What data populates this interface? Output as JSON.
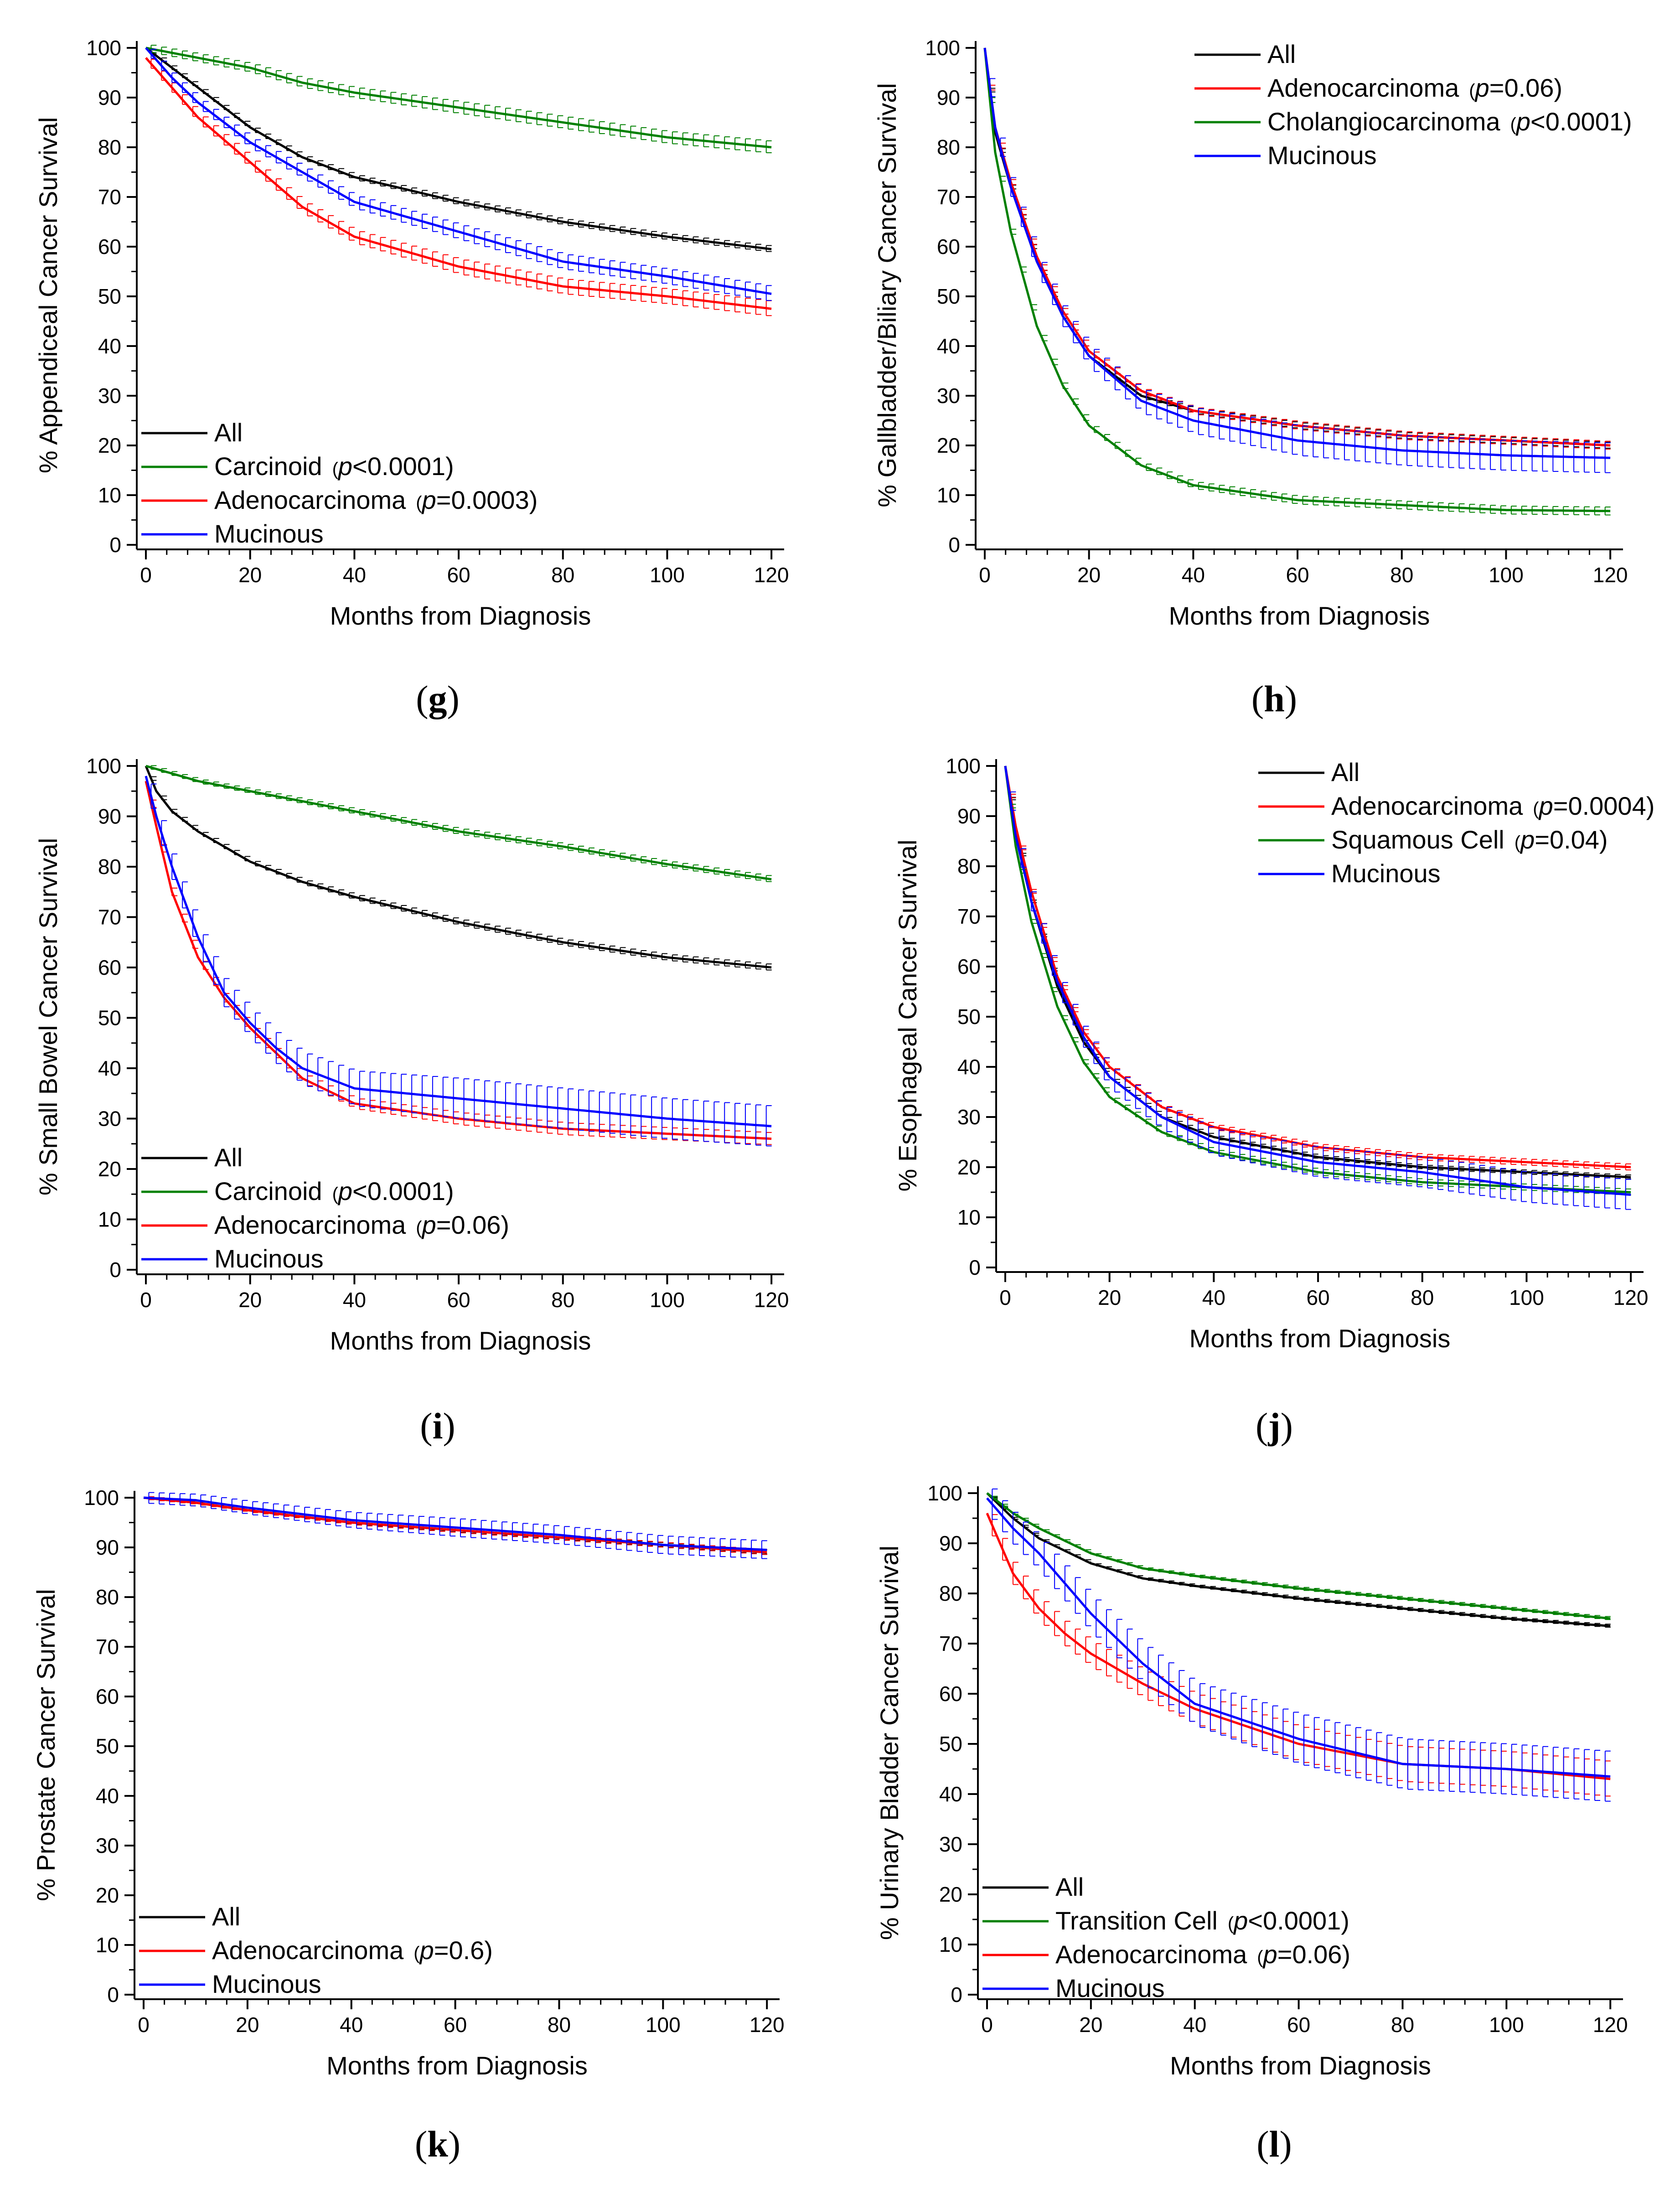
{
  "figure": {
    "x_axis_label": "Months from Diagnosis",
    "x_ticks": [
      "0",
      "20",
      "40",
      "60",
      "80",
      "100",
      "120"
    ],
    "y_ticks": [
      "0",
      "10",
      "20",
      "30",
      "40",
      "50",
      "60",
      "70",
      "80",
      "90",
      "100"
    ]
  },
  "colors": {
    "all": "#000000",
    "green": "#008000",
    "red": "#ff0000",
    "blue": "#0000ff"
  },
  "chart_data": [
    {
      "id": "g",
      "type": "line",
      "panel": "g",
      "ylabel": "% Appendiceal Cancer Survival",
      "xlabel": "Months from Diagnosis",
      "xlim": [
        0,
        122
      ],
      "ylim": [
        0,
        100
      ],
      "legend_position": "bottom-left",
      "series": [
        {
          "name": "All",
          "pnote": "",
          "color": "#000000",
          "x": [
            0,
            5,
            10,
            20,
            30,
            40,
            60,
            80,
            100,
            120
          ],
          "values": [
            100,
            96,
            92,
            84,
            78,
            74,
            69,
            65,
            62,
            59.5
          ],
          "err": 0.6
        },
        {
          "name": "Carcinoid",
          "pnote": "p<0.0001",
          "color": "#008000",
          "x": [
            0,
            5,
            10,
            20,
            30,
            40,
            60,
            80,
            100,
            120
          ],
          "values": [
            100,
            99,
            98,
            96,
            93,
            91,
            88,
            85,
            82,
            80
          ],
          "err": 1.2
        },
        {
          "name": "Adenocarcinoma",
          "pnote": "p=0.0003",
          "color": "#ff0000",
          "x": [
            0,
            5,
            10,
            20,
            30,
            40,
            60,
            80,
            100,
            120
          ],
          "values": [
            98,
            92,
            86,
            77,
            68,
            62,
            56,
            52,
            50,
            47.5
          ],
          "err": 1.5
        },
        {
          "name": "Mucinous",
          "pnote": "",
          "color": "#0000ff",
          "x": [
            0,
            5,
            10,
            20,
            30,
            40,
            60,
            80,
            100,
            120
          ],
          "values": [
            100,
            94,
            89,
            81,
            75,
            69,
            63,
            57,
            54,
            50.5
          ],
          "err": 1.5
        }
      ]
    },
    {
      "id": "h",
      "type": "line",
      "panel": "h",
      "ylabel": "% Gallbladder/Biliary Cancer Survival",
      "xlabel": "Months from Diagnosis",
      "xlim": [
        0,
        122
      ],
      "ylim": [
        0,
        100
      ],
      "legend_position": "top-right",
      "series": [
        {
          "name": "All",
          "pnote": "",
          "color": "#000000",
          "x": [
            0,
            2,
            5,
            10,
            15,
            20,
            30,
            40,
            60,
            80,
            100,
            120
          ],
          "values": [
            100,
            83,
            72,
            57,
            46,
            38,
            30,
            27,
            24,
            22,
            21,
            20
          ],
          "err": 0.6
        },
        {
          "name": "Adenocarcinoma",
          "pnote": "p=0.06",
          "color": "#ff0000",
          "x": [
            0,
            2,
            5,
            10,
            15,
            20,
            30,
            40,
            60,
            80,
            100,
            120
          ],
          "values": [
            100,
            84,
            73,
            58,
            47,
            39,
            31,
            27,
            24,
            22,
            21,
            20
          ],
          "err": 0.8
        },
        {
          "name": "Cholangiocarcinoma",
          "pnote": "p<0.0001",
          "color": "#008000",
          "x": [
            0,
            2,
            5,
            10,
            15,
            20,
            30,
            40,
            60,
            80,
            100,
            120
          ],
          "values": [
            100,
            79,
            63,
            44,
            32,
            24,
            16,
            12,
            9,
            8,
            7,
            6.8
          ],
          "err": 0.8
        },
        {
          "name": "Mucinous",
          "pnote": "",
          "color": "#0000ff",
          "x": [
            0,
            2,
            5,
            10,
            15,
            20,
            30,
            40,
            60,
            80,
            100,
            120
          ],
          "values": [
            100,
            84,
            72,
            57,
            46,
            38,
            29,
            25,
            21,
            19,
            18,
            17.5
          ],
          "err": 3
        }
      ]
    },
    {
      "id": "i",
      "type": "line",
      "panel": "i",
      "ylabel": "% Small Bowel Cancer Survival",
      "xlabel": "Months from Diagnosis",
      "xlim": [
        0,
        122
      ],
      "ylim": [
        0,
        100
      ],
      "legend_position": "bottom-left",
      "series": [
        {
          "name": "All",
          "pnote": "",
          "color": "#000000",
          "x": [
            0,
            2,
            5,
            10,
            20,
            30,
            40,
            60,
            80,
            100,
            120
          ],
          "values": [
            100,
            95,
            91,
            87,
            81,
            77,
            74,
            69,
            65,
            62,
            60
          ],
          "err": 0.6
        },
        {
          "name": "Carcinoid",
          "pnote": "p<0.0001",
          "color": "#008000",
          "x": [
            0,
            5,
            10,
            20,
            40,
            60,
            80,
            100,
            120
          ],
          "values": [
            100,
            98.5,
            97,
            95,
            91,
            87,
            84,
            80.5,
            77.5
          ],
          "err": 0.6
        },
        {
          "name": "Adenocarcinoma",
          "pnote": "p=0.06",
          "color": "#ff0000",
          "x": [
            0,
            2,
            5,
            10,
            15,
            20,
            25,
            30,
            40,
            60,
            80,
            100,
            120
          ],
          "values": [
            97,
            88,
            75,
            62,
            54,
            48,
            43,
            38,
            33,
            30,
            28,
            27,
            26
          ],
          "err": 1.2
        },
        {
          "name": "Mucinous",
          "pnote": "",
          "color": "#0000ff",
          "x": [
            0,
            2,
            5,
            10,
            15,
            20,
            25,
            30,
            40,
            60,
            80,
            100,
            120
          ],
          "values": [
            98,
            90,
            80,
            66,
            55,
            49,
            44,
            40,
            36,
            34,
            32,
            30,
            28.5
          ],
          "err": 4
        }
      ]
    },
    {
      "id": "j",
      "type": "line",
      "panel": "j",
      "ylabel": "% Esophageal Cancer Survival",
      "xlabel": "Months from Diagnosis",
      "xlim": [
        0,
        122
      ],
      "ylim": [
        0,
        100
      ],
      "legend_position": "top-right",
      "series": [
        {
          "name": "All",
          "pnote": "",
          "color": "#000000",
          "x": [
            0,
            2,
            5,
            10,
            15,
            20,
            30,
            40,
            60,
            80,
            100,
            120
          ],
          "values": [
            100,
            87,
            73,
            56,
            45,
            38,
            30,
            26,
            22,
            20,
            19,
            18
          ],
          "err": 0.4
        },
        {
          "name": "Adenocarcinoma",
          "pnote": "p=0.0004",
          "color": "#ff0000",
          "x": [
            0,
            2,
            5,
            10,
            15,
            20,
            30,
            40,
            60,
            80,
            100,
            120
          ],
          "values": [
            100,
            88,
            75,
            58,
            47,
            40,
            32,
            28,
            24,
            22,
            21,
            20
          ],
          "err": 0.6
        },
        {
          "name": "Squamous Cell",
          "pnote": "p=0.04",
          "color": "#008000",
          "x": [
            0,
            2,
            5,
            10,
            15,
            20,
            30,
            40,
            60,
            80,
            100,
            120
          ],
          "values": [
            100,
            84,
            69,
            52,
            41,
            34,
            27,
            23,
            19,
            17,
            16,
            15
          ],
          "err": 0.6
        },
        {
          "name": "Mucinous",
          "pnote": "",
          "color": "#0000ff",
          "x": [
            0,
            2,
            5,
            10,
            15,
            20,
            30,
            40,
            60,
            80,
            100,
            120
          ],
          "values": [
            100,
            86,
            73,
            57,
            46,
            38,
            30,
            25,
            21,
            19,
            16,
            14.5
          ],
          "err": 3
        }
      ]
    },
    {
      "id": "k",
      "type": "line",
      "panel": "k",
      "ylabel": "% Prostate Cancer Survival",
      "xlabel": "Months from Diagnosis",
      "xlim": [
        0,
        122
      ],
      "ylim": [
        0,
        100
      ],
      "legend_position": "bottom-left",
      "series": [
        {
          "name": "All",
          "pnote": "",
          "color": "#000000",
          "x": [
            0,
            10,
            20,
            40,
            60,
            80,
            100,
            120
          ],
          "values": [
            100,
            99,
            97.5,
            95,
            93.5,
            92,
            90.5,
            89
          ],
          "err": 0.4
        },
        {
          "name": "Adenocarcinoma",
          "pnote": "p=0.6",
          "color": "#ff0000",
          "x": [
            0,
            10,
            20,
            40,
            60,
            80,
            100,
            120
          ],
          "values": [
            100,
            99,
            97.5,
            95,
            93.5,
            92,
            90.5,
            89
          ],
          "err": 0.5
        },
        {
          "name": "Mucinous",
          "pnote": "",
          "color": "#0000ff",
          "x": [
            0,
            10,
            20,
            40,
            60,
            80,
            100,
            120
          ],
          "values": [
            100,
            99.5,
            98,
            95.5,
            94,
            92.5,
            90.5,
            89.5
          ],
          "err": 1.8
        }
      ]
    },
    {
      "id": "l",
      "type": "line",
      "panel": "l",
      "ylabel": "% Urinary Bladder Cancer Survival",
      "xlabel": "Months from Diagnosis",
      "xlim": [
        0,
        122
      ],
      "ylim": [
        0,
        100
      ],
      "legend_position": "bottom-left",
      "series": [
        {
          "name": "All",
          "pnote": "",
          "color": "#000000",
          "x": [
            0,
            5,
            10,
            20,
            30,
            40,
            60,
            80,
            100,
            120
          ],
          "values": [
            100,
            95,
            91,
            86,
            83,
            81.5,
            79,
            77,
            75,
            73.5
          ],
          "err": 0.3
        },
        {
          "name": "Transition Cell",
          "pnote": "p<0.0001",
          "color": "#008000",
          "x": [
            0,
            5,
            10,
            20,
            30,
            40,
            60,
            80,
            100,
            120
          ],
          "values": [
            100,
            96,
            93,
            88,
            85,
            83.5,
            81,
            79,
            77,
            75
          ],
          "err": 0.3
        },
        {
          "name": "Adenocarcinoma",
          "pnote": "p=0.06",
          "color": "#ff0000",
          "x": [
            0,
            5,
            10,
            15,
            20,
            30,
            40,
            60,
            80,
            100,
            120
          ],
          "values": [
            96,
            84,
            77,
            72,
            68,
            62,
            57,
            50,
            46,
            45,
            43
          ],
          "err": 3.5
        },
        {
          "name": "Mucinous",
          "pnote": "",
          "color": "#0000ff",
          "x": [
            0,
            5,
            10,
            15,
            20,
            30,
            40,
            60,
            80,
            100,
            120
          ],
          "values": [
            99,
            93,
            88,
            82,
            76,
            66,
            58,
            51,
            46,
            45,
            43.5
          ],
          "err": 5
        }
      ]
    }
  ]
}
